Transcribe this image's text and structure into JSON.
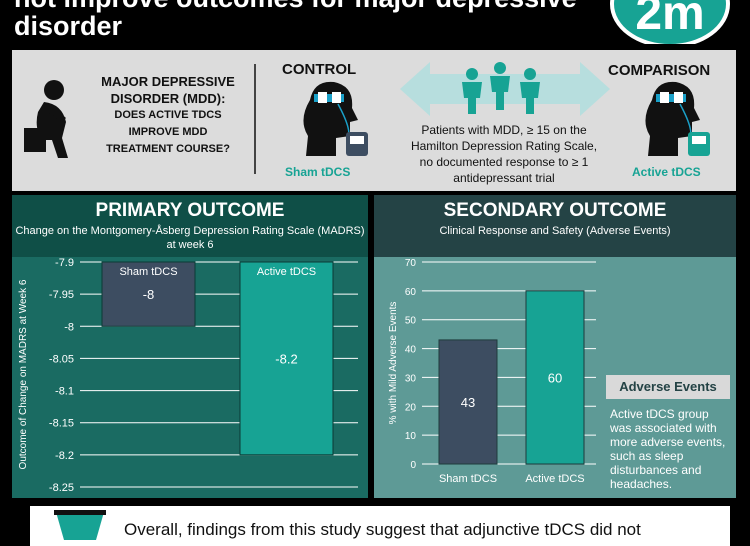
{
  "header": {
    "title_line1": "not improve outcomes for major depressive",
    "title_line2": "disorder",
    "logo_text": "2m",
    "colors": {
      "accent": "#17a394",
      "dark_panel": "#0f4f47"
    }
  },
  "study": {
    "question_title": "MAJOR DEPRESSIVE DISORDER (MDD):",
    "question_sub": "DOES ACTIVE TDCS IMPROVE MDD TREATMENT COURSE?",
    "control_label": "CONTROL",
    "control_caption": "Sham tDCS",
    "comparison_label": "COMPARISON",
    "comparison_caption": "Active tDCS",
    "criteria": "Patients with MDD, ≥ 15 on the Hamilton Depression Rating Scale, no documented response to ≥ 1 antidepressant trial",
    "icons": [
      "thinking-person-icon",
      "head-electrode-icon",
      "people-group-icon",
      "double-arrow-icon"
    ]
  },
  "primary": {
    "title": "PRIMARY OUTCOME",
    "subtitle": "Change on the Montgomery-Åsberg Depression Rating Scale (MADRS) at week 6"
  },
  "secondary": {
    "title": "SECONDARY OUTCOME",
    "subtitle": "Clinical Response and Safety (Adverse Events)",
    "adverse_title": "Adverse Events",
    "adverse_text": "Active tDCS group was associated with more adverse events, such as sleep disturbances and headaches."
  },
  "footer": {
    "text": "Overall, findings from this study suggest that adjunctive tDCS did not"
  },
  "chart_data": [
    {
      "type": "bar",
      "categories": [
        "Sham tDCS",
        "Active tDCS"
      ],
      "values": [
        -8,
        -8.2
      ],
      "value_labels": [
        "-8",
        "-8.2"
      ],
      "title": "",
      "xlabel": "",
      "ylabel": "Outcome of Change on MADRS at Week 6",
      "ylim": [
        -8.25,
        -7.9
      ],
      "yticks": [
        -7.9,
        -7.95,
        -8,
        -8.05,
        -8.1,
        -8.15,
        -8.2,
        -8.25
      ],
      "ytick_labels": [
        "-7.9",
        "-7.95",
        "-8",
        "-8.05",
        "-8.1",
        "-8.15",
        "-8.2",
        "-8.25"
      ],
      "grid": true,
      "colors": [
        "#3d4d61",
        "#17a394"
      ]
    },
    {
      "type": "bar",
      "categories": [
        "Sham tDCS",
        "Active tDCS"
      ],
      "values": [
        43,
        60
      ],
      "value_labels": [
        "43",
        "60"
      ],
      "title": "",
      "xlabel": "",
      "ylabel": "% with Mild Adverse Events",
      "ylim": [
        0,
        70
      ],
      "yticks": [
        0,
        10,
        20,
        30,
        40,
        50,
        60,
        70
      ],
      "ytick_labels": [
        "0",
        "10",
        "20",
        "30",
        "40",
        "50",
        "60",
        "70"
      ],
      "grid": true,
      "colors": [
        "#3d4d61",
        "#17a394"
      ]
    }
  ]
}
